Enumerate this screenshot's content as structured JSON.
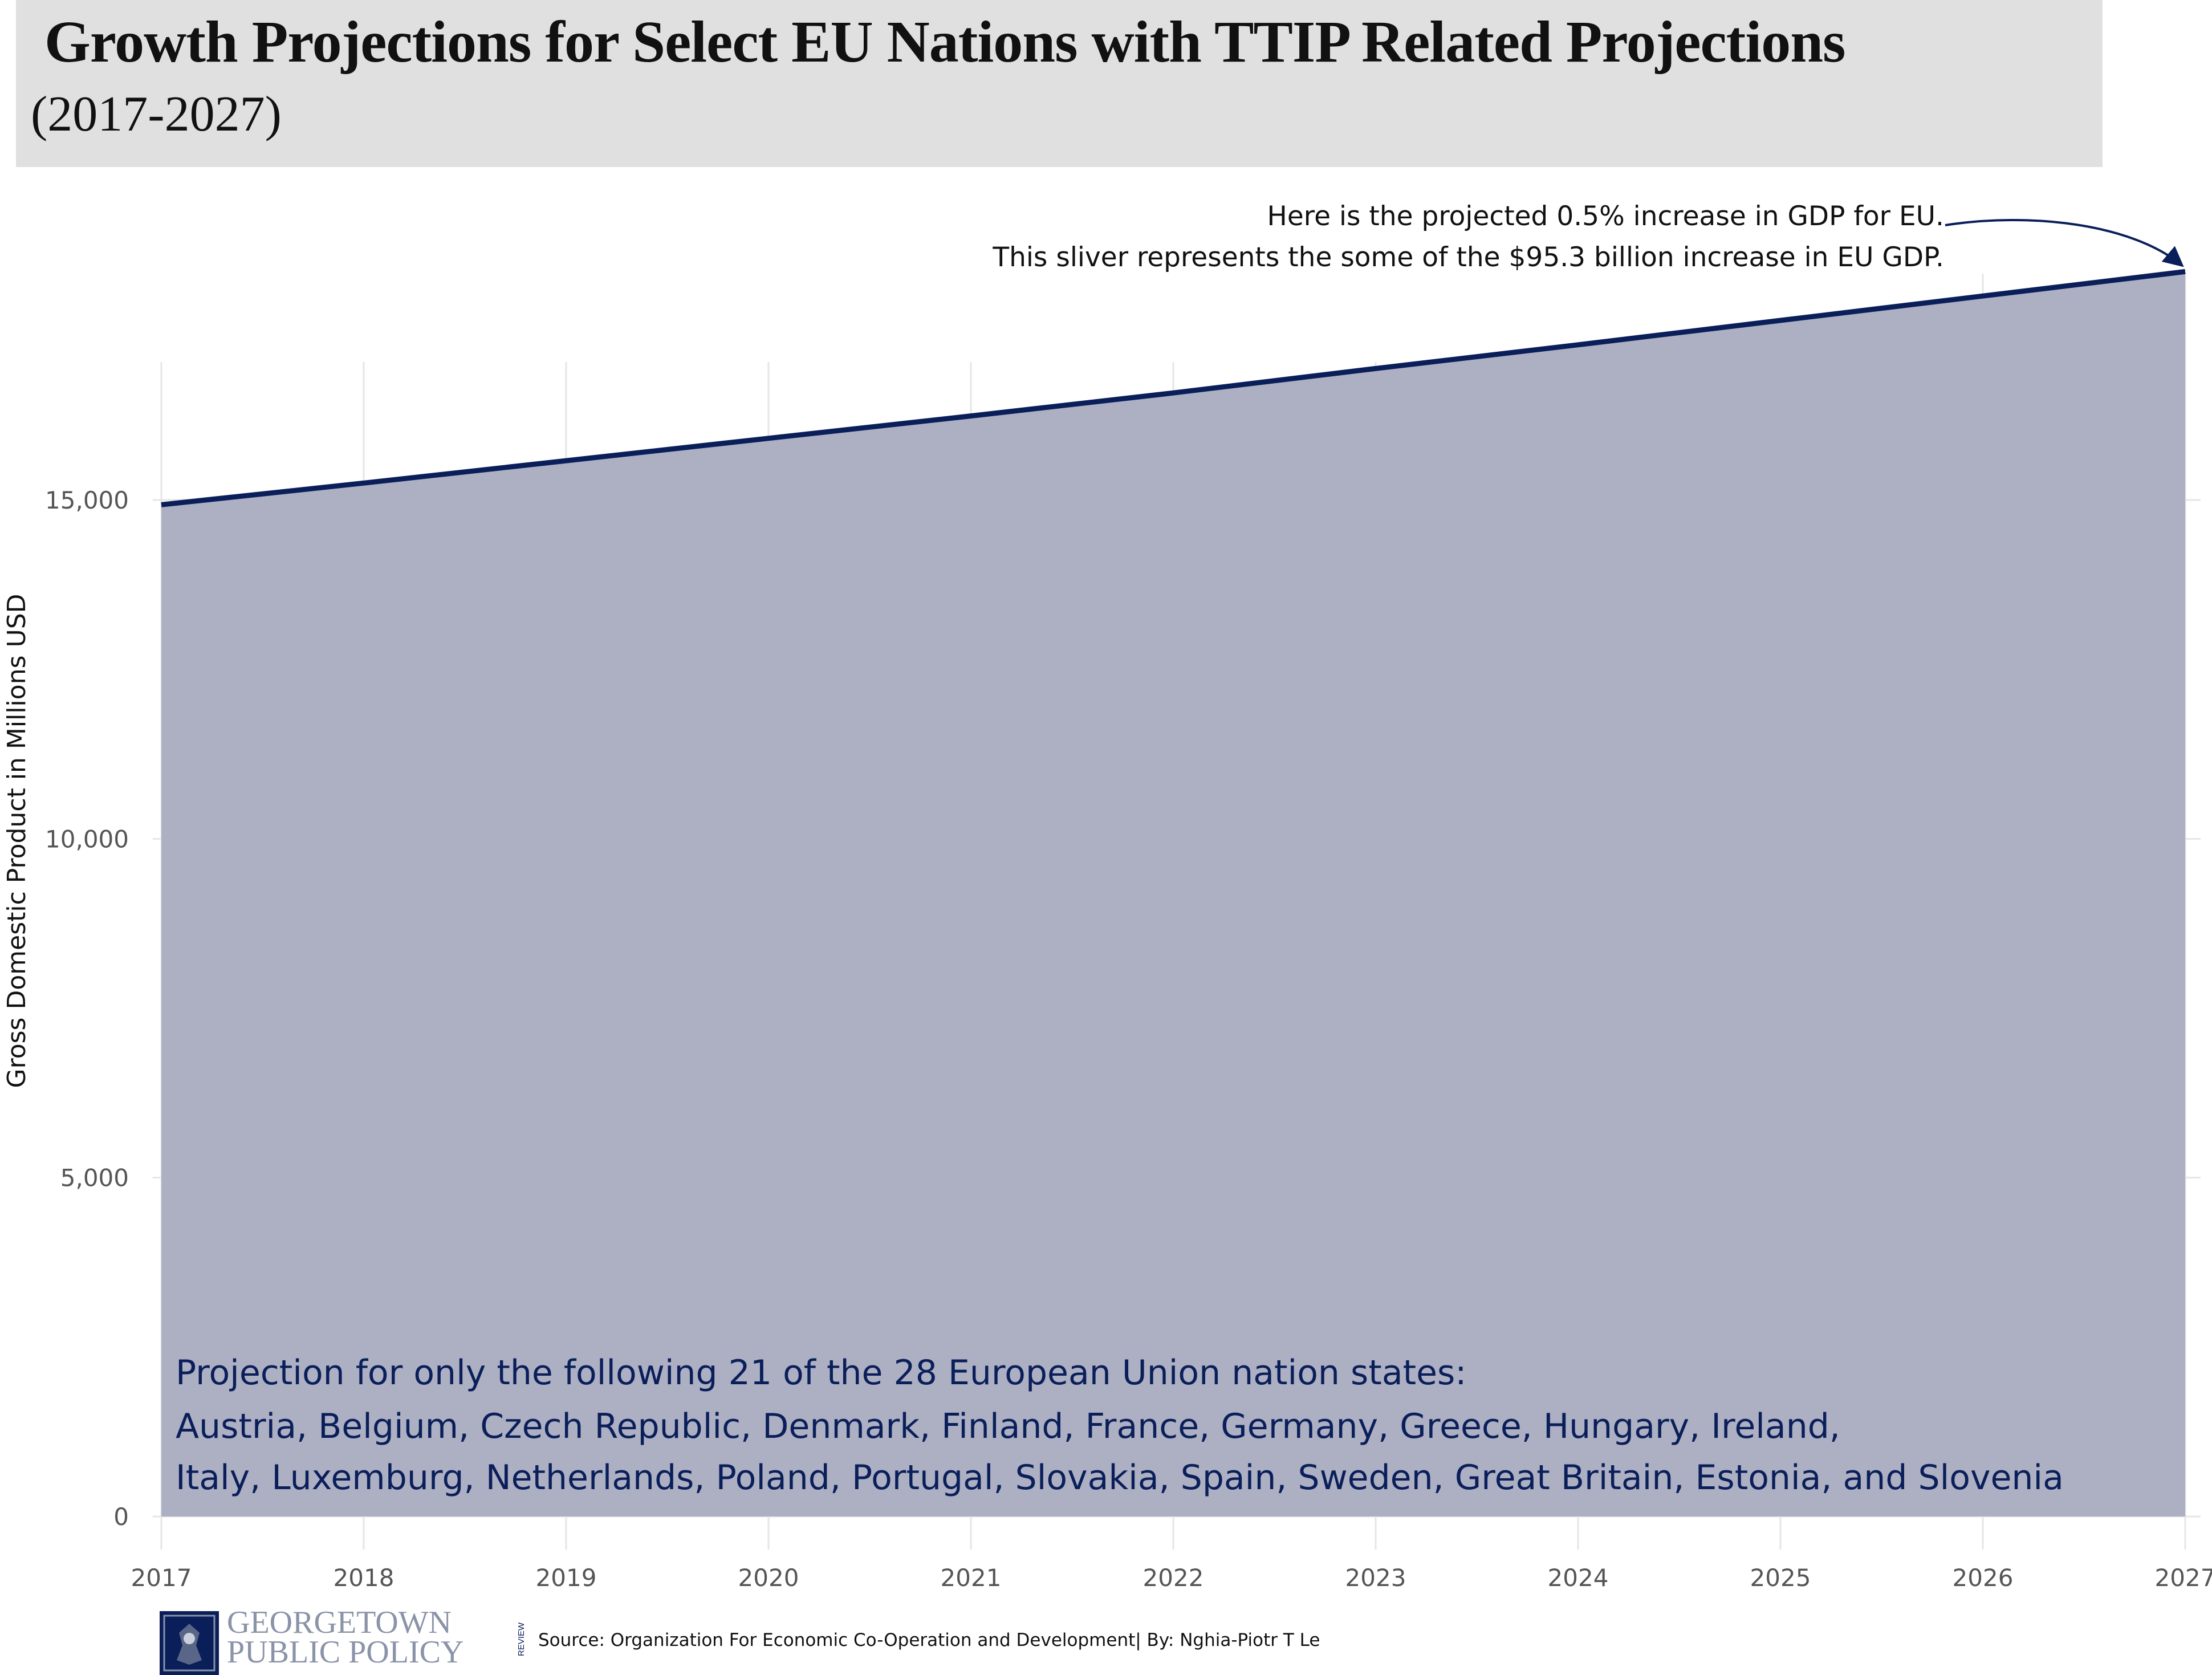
{
  "chart_data": {
    "type": "area",
    "title": "Growth Projections for Select EU Nations with TTIP Related Projections",
    "subtitle": "(2017-2027)",
    "ylabel": "Gross Domestic Product in Millions USD",
    "xlabel": "",
    "x": [
      2017,
      2018,
      2019,
      2020,
      2021,
      2022,
      2023,
      2024,
      2025,
      2026,
      2027
    ],
    "series": [
      {
        "values": [
          14930,
          15250,
          15580,
          15910,
          16240,
          16580,
          16940,
          17290,
          17650,
          18010,
          18370
        ]
      }
    ],
    "xlim": [
      2017,
      2027
    ],
    "ylim": [
      0,
      17000
    ],
    "yticks": [
      0,
      5000,
      10000,
      15000
    ],
    "ytick_labels": [
      "0",
      "5,000",
      "10,000",
      "15,000"
    ],
    "xtick_labels": [
      "2017",
      "2018",
      "2019",
      "2020",
      "2021",
      "2022",
      "2023",
      "2024",
      "2025",
      "2026",
      "2027"
    ],
    "grid": true,
    "fill_color": "#adb0c2",
    "line_color": "#0a1e5a",
    "annotations": {
      "arrow_note": [
        "Here is the projected 0.5% increase in GDP for EU.",
        "This sliver represents the some of the $95.3 billion increase in EU GDP."
      ],
      "countries_note": [
        "Projection for only the following 21 of the 28 European Union nation states:",
        "Austria, Belgium, Czech Republic, Denmark, Finland, France, Germany, Greece, Hungary, Ireland,",
        "Italy, Luxemburg, Netherlands, Poland, Portugal, Slovakia, Spain, Sweden, Great Britain, Estonia, and Slovenia"
      ]
    }
  },
  "footer": {
    "logo_line1": "GEORGETOWN",
    "logo_line2": "PUBLIC POLICY",
    "logo_review": "REVIEW",
    "source": "Source: Organization For Economic Co-Operation and Development| By: Nghia-Piotr T Le"
  },
  "colors": {
    "title_bg": "#e0e0e0",
    "grid": "#e6e6e6",
    "navy": "#0a1e5a",
    "logo_gray": "#8a93a8"
  }
}
